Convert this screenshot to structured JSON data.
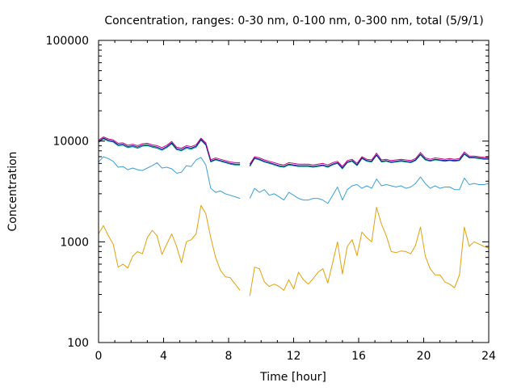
{
  "chart_data": {
    "type": "line",
    "title": "Concentration, ranges: 0-30 nm, 0-100 nm, 0-300 nm, total (5/9/1)",
    "xlabel": "Time [hour]",
    "ylabel": "Concentration",
    "xlim": [
      0,
      24
    ],
    "ylim": [
      100,
      100000
    ],
    "yscale": "log",
    "grid": false,
    "legend": "none",
    "x_ticks": [
      0,
      4,
      8,
      12,
      16,
      20,
      24
    ],
    "x_tick_labels": [
      "0",
      "4",
      "8",
      "12",
      "16",
      "20",
      "24"
    ],
    "y_ticks": [
      100,
      1000,
      10000,
      100000
    ],
    "y_tick_labels": [
      "100",
      "1000",
      "10000",
      "100000"
    ],
    "series": [
      {
        "color": "#e5a00a",
        "x": [
          0.0,
          0.3,
          0.6,
          0.9,
          1.2,
          1.5,
          1.8,
          2.1,
          2.4,
          2.7,
          3.0,
          3.3,
          3.6,
          3.9,
          4.2,
          4.5,
          4.8,
          5.1,
          5.4,
          5.7,
          6.0,
          6.3,
          6.6,
          6.9,
          7.2,
          7.5,
          7.8,
          8.1,
          8.4,
          8.7,
          9.0,
          9.3,
          9.6,
          9.9,
          10.2,
          10.5,
          10.8,
          11.1,
          11.4,
          11.7,
          12.0,
          12.3,
          12.6,
          12.9,
          13.2,
          13.5,
          13.8,
          14.1,
          14.4,
          14.7,
          15.0,
          15.3,
          15.6,
          15.9,
          16.2,
          16.5,
          16.8,
          17.1,
          17.4,
          17.7,
          18.0,
          18.3,
          18.6,
          18.9,
          19.2,
          19.5,
          19.8,
          20.1,
          20.4,
          20.7,
          21.0,
          21.3,
          21.6,
          21.9,
          22.2,
          22.5,
          22.8,
          23.1,
          23.4,
          23.7,
          24.0
        ],
        "values": [
          1200,
          1450,
          1150,
          950,
          560,
          600,
          550,
          720,
          800,
          760,
          1100,
          1300,
          1150,
          750,
          950,
          1200,
          900,
          620,
          1000,
          1050,
          1200,
          2300,
          1900,
          1100,
          700,
          520,
          450,
          440,
          380,
          330,
          null,
          290,
          560,
          540,
          400,
          360,
          380,
          360,
          330,
          420,
          340,
          500,
          420,
          380,
          430,
          500,
          540,
          390,
          620,
          1000,
          480,
          900,
          1050,
          730,
          1250,
          1100,
          1000,
          2200,
          1500,
          1150,
          800,
          780,
          810,
          800,
          760,
          920,
          1400,
          720,
          540,
          470,
          470,
          400,
          380,
          350,
          470,
          1400,
          900,
          1000,
          950,
          900,
          870
        ]
      },
      {
        "color": "#3ba0d8",
        "x": [
          0.0,
          0.3,
          0.6,
          0.9,
          1.2,
          1.5,
          1.8,
          2.1,
          2.4,
          2.7,
          3.0,
          3.3,
          3.6,
          3.9,
          4.2,
          4.5,
          4.8,
          5.1,
          5.4,
          5.7,
          6.0,
          6.3,
          6.6,
          6.9,
          7.2,
          7.5,
          7.8,
          8.1,
          8.4,
          8.7,
          9.0,
          9.3,
          9.6,
          9.9,
          10.2,
          10.5,
          10.8,
          11.1,
          11.4,
          11.7,
          12.0,
          12.3,
          12.6,
          12.9,
          13.2,
          13.5,
          13.8,
          14.1,
          14.4,
          14.7,
          15.0,
          15.3,
          15.6,
          15.9,
          16.2,
          16.5,
          16.8,
          17.1,
          17.4,
          17.7,
          18.0,
          18.3,
          18.6,
          18.9,
          19.2,
          19.5,
          19.8,
          20.1,
          20.4,
          20.7,
          21.0,
          21.3,
          21.6,
          21.9,
          22.2,
          22.5,
          22.8,
          23.1,
          23.4,
          23.7,
          24.0
        ],
        "values": [
          6200,
          7000,
          6700,
          6300,
          5500,
          5600,
          5200,
          5400,
          5200,
          5100,
          5400,
          5700,
          6100,
          5400,
          5500,
          5300,
          4800,
          4900,
          5700,
          5600,
          6500,
          6900,
          5800,
          3400,
          3100,
          3200,
          3000,
          2900,
          2800,
          2700,
          null,
          2700,
          3400,
          3100,
          3300,
          2900,
          3000,
          2800,
          2600,
          3100,
          2900,
          2700,
          2600,
          2600,
          2700,
          2700,
          2600,
          2400,
          2900,
          3500,
          2600,
          3300,
          3600,
          3700,
          3400,
          3600,
          3400,
          4200,
          3600,
          3700,
          3600,
          3500,
          3600,
          3400,
          3500,
          3800,
          4400,
          3800,
          3400,
          3600,
          3400,
          3500,
          3500,
          3300,
          3300,
          4300,
          3700,
          3800,
          3700,
          3700,
          3800
        ]
      },
      {
        "color": "#009e73",
        "x": [
          0.0,
          0.3,
          0.6,
          0.9,
          1.2,
          1.5,
          1.8,
          2.1,
          2.4,
          2.7,
          3.0,
          3.3,
          3.6,
          3.9,
          4.2,
          4.5,
          4.8,
          5.1,
          5.4,
          5.7,
          6.0,
          6.3,
          6.6,
          6.9,
          7.2,
          7.5,
          7.8,
          8.1,
          8.4,
          8.7,
          9.0,
          9.3,
          9.6,
          9.9,
          10.2,
          10.5,
          10.8,
          11.1,
          11.4,
          11.7,
          12.0,
          12.3,
          12.6,
          12.9,
          13.2,
          13.5,
          13.8,
          14.1,
          14.4,
          14.7,
          15.0,
          15.3,
          15.6,
          15.9,
          16.2,
          16.5,
          16.8,
          17.1,
          17.4,
          17.7,
          18.0,
          18.3,
          18.6,
          18.9,
          19.2,
          19.5,
          19.8,
          20.1,
          20.4,
          20.7,
          21.0,
          21.3,
          21.6,
          21.9,
          22.2,
          22.5,
          22.8,
          23.1,
          23.4,
          23.7,
          24.0
        ],
        "values": [
          9700,
          10500,
          10000,
          9800,
          9000,
          9100,
          8600,
          8800,
          8500,
          8900,
          9000,
          8700,
          8500,
          8100,
          8600,
          9400,
          8200,
          8000,
          8500,
          8300,
          8700,
          10200,
          9100,
          6200,
          6500,
          6300,
          6100,
          5900,
          5800,
          5800,
          null,
          5600,
          6700,
          6500,
          6200,
          6000,
          5800,
          5600,
          5500,
          5800,
          5700,
          5600,
          5600,
          5600,
          5500,
          5600,
          5700,
          5500,
          5800,
          6000,
          5300,
          6100,
          6300,
          5700,
          6700,
          6300,
          6200,
          7200,
          6200,
          6300,
          6100,
          6200,
          6300,
          6200,
          6100,
          6400,
          7300,
          6500,
          6300,
          6500,
          6400,
          6300,
          6400,
          6300,
          6400,
          7400,
          6800,
          6800,
          6700,
          6600,
          6600
        ]
      },
      {
        "color": "#0a0aa0",
        "x": [
          0.0,
          0.3,
          0.6,
          0.9,
          1.2,
          1.5,
          1.8,
          2.1,
          2.4,
          2.7,
          3.0,
          3.3,
          3.6,
          3.9,
          4.2,
          4.5,
          4.8,
          5.1,
          5.4,
          5.7,
          6.0,
          6.3,
          6.6,
          6.9,
          7.2,
          7.5,
          7.8,
          8.1,
          8.4,
          8.7,
          9.0,
          9.3,
          9.6,
          9.9,
          10.2,
          10.5,
          10.8,
          11.1,
          11.4,
          11.7,
          12.0,
          12.3,
          12.6,
          12.9,
          13.2,
          13.5,
          13.8,
          14.1,
          14.4,
          14.7,
          15.0,
          15.3,
          15.6,
          15.9,
          16.2,
          16.5,
          16.8,
          17.1,
          17.4,
          17.7,
          18.0,
          18.3,
          18.6,
          18.9,
          19.2,
          19.5,
          19.8,
          20.1,
          20.4,
          20.7,
          21.0,
          21.3,
          21.6,
          21.9,
          22.2,
          22.5,
          22.8,
          23.1,
          23.4,
          23.7,
          24.0
        ],
        "values": [
          9900,
          10700,
          10200,
          10000,
          9200,
          9300,
          8800,
          9000,
          8700,
          9100,
          9200,
          8900,
          8700,
          8300,
          8800,
          9600,
          8400,
          8200,
          8700,
          8500,
          8900,
          10400,
          9300,
          6300,
          6600,
          6400,
          6200,
          6000,
          5900,
          5900,
          null,
          5700,
          6800,
          6600,
          6300,
          6100,
          5900,
          5700,
          5600,
          5900,
          5800,
          5700,
          5700,
          5700,
          5600,
          5700,
          5800,
          5600,
          5900,
          6100,
          5400,
          6200,
          6400,
          5800,
          6800,
          6400,
          6300,
          7300,
          6300,
          6400,
          6200,
          6300,
          6400,
          6300,
          6200,
          6500,
          7400,
          6600,
          6400,
          6600,
          6500,
          6400,
          6500,
          6400,
          6500,
          7500,
          6900,
          6900,
          6800,
          6700,
          6700
        ]
      },
      {
        "color": "#c0007a",
        "x": [
          0.0,
          0.3,
          0.6,
          0.9,
          1.2,
          1.5,
          1.8,
          2.1,
          2.4,
          2.7,
          3.0,
          3.3,
          3.6,
          3.9,
          4.2,
          4.5,
          4.8,
          5.1,
          5.4,
          5.7,
          6.0,
          6.3,
          6.6,
          6.9,
          7.2,
          7.5,
          7.8,
          8.1,
          8.4,
          8.7,
          9.0,
          9.3,
          9.6,
          9.9,
          10.2,
          10.5,
          10.8,
          11.1,
          11.4,
          11.7,
          12.0,
          12.3,
          12.6,
          12.9,
          13.2,
          13.5,
          13.8,
          14.1,
          14.4,
          14.7,
          15.0,
          15.3,
          15.6,
          15.9,
          16.2,
          16.5,
          16.8,
          17.1,
          17.4,
          17.7,
          18.0,
          18.3,
          18.6,
          18.9,
          19.2,
          19.5,
          19.8,
          20.1,
          20.4,
          20.7,
          21.0,
          21.3,
          21.6,
          21.9,
          22.2,
          22.5,
          22.8,
          23.1,
          23.4,
          23.7,
          24.0
        ],
        "values": [
          10200,
          11000,
          10500,
          10300,
          9500,
          9600,
          9100,
          9300,
          9000,
          9400,
          9500,
          9200,
          9000,
          8600,
          9100,
          9900,
          8700,
          8500,
          9000,
          8800,
          9200,
          10700,
          9600,
          6500,
          6800,
          6600,
          6400,
          6200,
          6100,
          6100,
          null,
          5900,
          7000,
          6800,
          6500,
          6300,
          6100,
          5900,
          5800,
          6100,
          6000,
          5900,
          5900,
          5900,
          5800,
          5900,
          6000,
          5800,
          6100,
          6300,
          5600,
          6400,
          6600,
          6000,
          7000,
          6600,
          6500,
          7600,
          6500,
          6600,
          6400,
          6500,
          6600,
          6500,
          6400,
          6700,
          7700,
          6800,
          6600,
          6800,
          6700,
          6600,
          6700,
          6600,
          6700,
          7800,
          7100,
          7100,
          7000,
          6900,
          6900
        ]
      }
    ]
  }
}
